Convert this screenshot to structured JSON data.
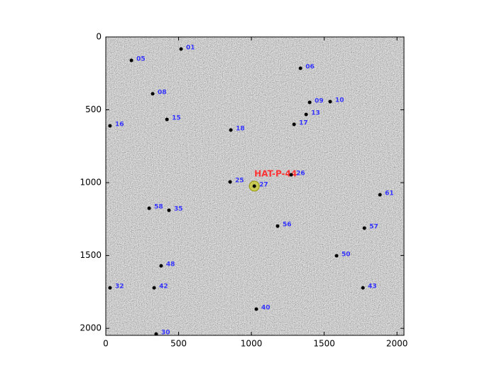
{
  "chart_data": {
    "type": "scatter",
    "xlim": [
      0,
      2048
    ],
    "ylim": [
      2048,
      0
    ],
    "xticks": [
      0,
      500,
      1000,
      1500,
      2000
    ],
    "yticks": [
      0,
      500,
      1000,
      1500,
      2000
    ],
    "point_labels": [
      "01",
      "05",
      "06",
      "08",
      "09",
      "10",
      "13",
      "15",
      "16",
      "17",
      "18",
      "25",
      "26",
      "27",
      "61",
      "58",
      "35",
      "56",
      "57",
      "50",
      "48",
      "32",
      "42",
      "43",
      "40",
      "30"
    ],
    "x": [
      517,
      176,
      1337,
      322,
      1400,
      1541,
      1376,
      420,
      29,
      1293,
      859,
      854,
      1273,
      1020,
      1883,
      298,
      434,
      1180,
      1776,
      1585,
      380,
      29,
      332,
      1766,
      1034,
      346
    ],
    "values": [
      83,
      161,
      215,
      390,
      449,
      444,
      532,
      566,
      610,
      600,
      639,
      995,
      946,
      1024,
      1083,
      1176,
      1190,
      1298,
      1312,
      1502,
      1571,
      1722,
      1722,
      1722,
      1868,
      2039
    ],
    "color": "#000000",
    "label_color": "#3333ff",
    "annotation": {
      "text": "HAT-P-44",
      "x": 1020,
      "y": 1024,
      "color": "#ff3333"
    }
  }
}
